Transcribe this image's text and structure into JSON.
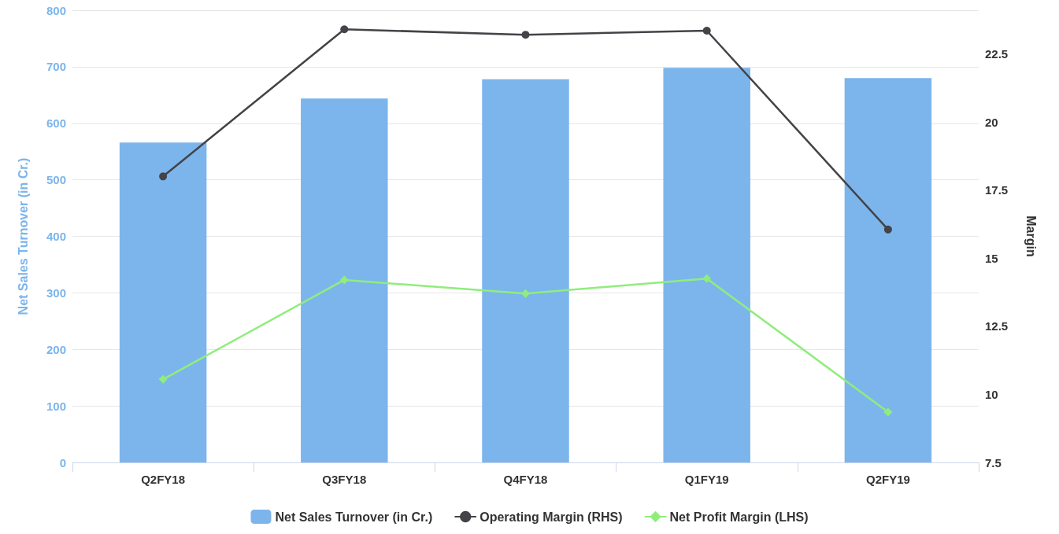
{
  "chart_data": {
    "type": "bar",
    "categories": [
      "Q2FY18",
      "Q3FY18",
      "Q4FY18",
      "Q1FY19",
      "Q2FY19"
    ],
    "ylabel": "Net Sales Turnover (in Cr.)",
    "y2label": "Margin",
    "ylim": [
      0,
      800
    ],
    "yticks": [
      0,
      100,
      200,
      300,
      400,
      500,
      600,
      700,
      800
    ],
    "y2lim": [
      7.5,
      24.1
    ],
    "y2ticks": [
      7.5,
      10,
      12.5,
      15,
      17.5,
      20,
      22.5
    ],
    "grid": "y",
    "legend": "bottom",
    "series": [
      {
        "name": "Net Sales Turnover (in Cr.)",
        "color": "#7cb5ec",
        "values": [
          566,
          644,
          678,
          698,
          680
        ]
      },
      {
        "name": "Operating Margin (RHS)",
        "type": "line",
        "axis": "y2",
        "marker": "circle",
        "color": "#434348",
        "values": [
          18.0,
          23.4,
          23.2,
          23.35,
          16.05
        ]
      },
      {
        "name": "Net Profit Margin (LHS)",
        "type": "line",
        "axis": "y2",
        "marker": "diamond",
        "color": "#90ed7d",
        "values": [
          10.55,
          14.2,
          13.7,
          14.25,
          9.35
        ]
      }
    ]
  }
}
